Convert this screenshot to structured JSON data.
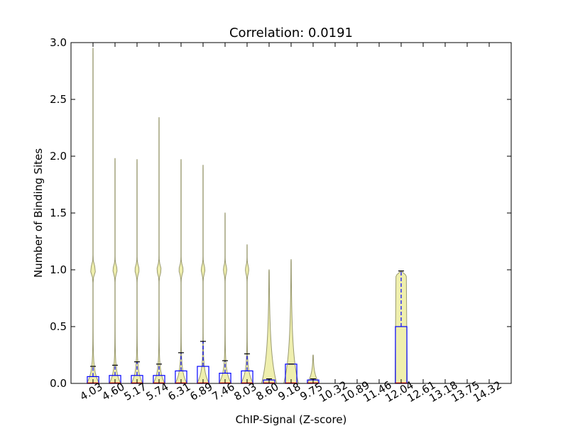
{
  "chart_data": {
    "type": "violin",
    "title": "Correlation: 0.0191",
    "xlabel": "ChIP-Signal (Z-score)",
    "ylabel": "Number of Binding Sites",
    "ylim": [
      0,
      3.0
    ],
    "yticks": [
      "0.0",
      "0.5",
      "1.0",
      "1.5",
      "2.0",
      "2.5",
      "3.0"
    ],
    "categories": [
      "4.03",
      "4.60",
      "5.17",
      "5.74",
      "6.31",
      "6.89",
      "7.46",
      "8.03",
      "8.60",
      "9.18",
      "9.75",
      "10.32",
      "10.89",
      "11.46",
      "12.04",
      "12.61",
      "13.18",
      "13.75",
      "14.32"
    ],
    "colors": {
      "violin_fill": "#eeeeaa",
      "violin_edge": "#9a9a70",
      "box": "#0000ff",
      "median": "#ff0000",
      "cap": "#000000",
      "spine": "#000000"
    },
    "violins": [
      {
        "category": "4.03",
        "max": 2.95,
        "q1": 0,
        "median": 0,
        "q3": 0.06,
        "whisker": 0.15,
        "base_half": 0.55,
        "bulge1": 0.22
      },
      {
        "category": "4.60",
        "max": 1.98,
        "q1": 0,
        "median": 0,
        "q3": 0.07,
        "whisker": 0.16,
        "base_half": 0.5,
        "bulge1": 0.18
      },
      {
        "category": "5.17",
        "max": 1.97,
        "q1": 0,
        "median": 0,
        "q3": 0.07,
        "whisker": 0.19,
        "base_half": 0.5,
        "bulge1": 0.18
      },
      {
        "category": "5.74",
        "max": 2.34,
        "q1": 0,
        "median": 0,
        "q3": 0.07,
        "whisker": 0.17,
        "base_half": 0.5,
        "bulge1": 0.18
      },
      {
        "category": "6.31",
        "max": 1.97,
        "q1": 0,
        "median": 0,
        "q3": 0.11,
        "whisker": 0.27,
        "base_half": 0.52,
        "bulge1": 0.18
      },
      {
        "category": "6.89",
        "max": 1.92,
        "q1": 0,
        "median": 0,
        "q3": 0.15,
        "whisker": 0.37,
        "base_half": 0.55,
        "bulge1": 0.16
      },
      {
        "category": "7.46",
        "max": 1.5,
        "q1": 0,
        "median": 0,
        "q3": 0.09,
        "whisker": 0.2,
        "base_half": 0.55,
        "bulge1": 0.14
      },
      {
        "category": "8.03",
        "max": 1.22,
        "q1": 0,
        "median": 0,
        "q3": 0.11,
        "whisker": 0.26,
        "base_half": 0.55,
        "bulge1": 0.14
      },
      {
        "category": "8.60",
        "max": 1.0,
        "q1": 0,
        "median": 0,
        "q3": 0.03,
        "whisker": 0.04,
        "base_half": 0.6,
        "bulge1": 0.08
      },
      {
        "category": "9.18",
        "max": 1.09,
        "q1": 0,
        "median": 0,
        "q3": 0.17,
        "whisker": 0.17,
        "base_half": 0.58,
        "bulge1": 0.12
      },
      {
        "category": "9.75",
        "max": 0.25,
        "q1": 0,
        "median": 0,
        "q3": 0.03,
        "whisker": 0.04,
        "base_half": 0.5,
        "bulge1": 0
      },
      {
        "category": "12.04",
        "max": 0.99,
        "q1": 0,
        "median": 0,
        "q3": 0.5,
        "whisker": 0.99,
        "base_half": 0.55,
        "bulge1": 0.55
      }
    ]
  }
}
